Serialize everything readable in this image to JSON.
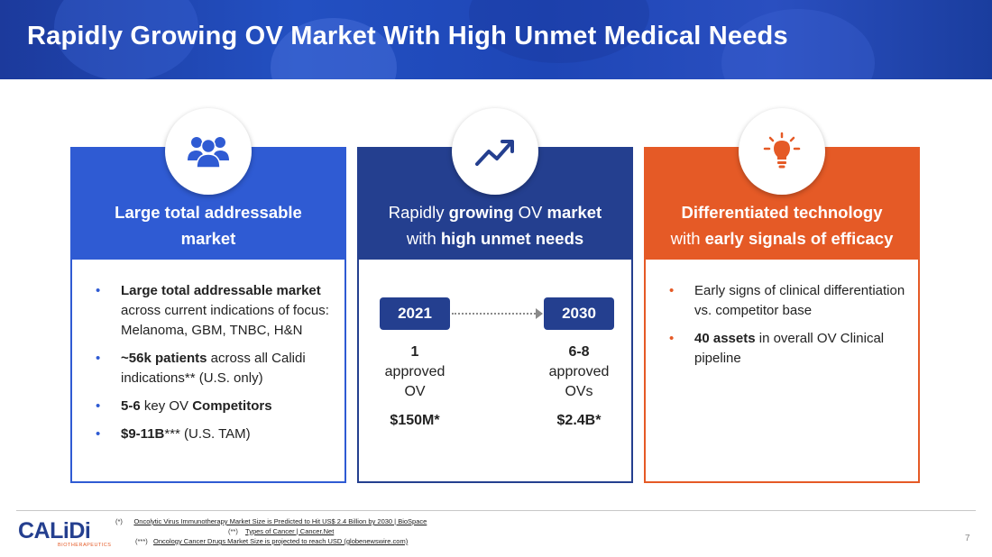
{
  "header": {
    "title": "Rapidly Growing OV Market With High Unmet Medical Needs"
  },
  "columns": [
    {
      "icon": "users-group-icon",
      "heading_line1": "Large total addressable",
      "heading_line2": "market",
      "bullets": [
        {
          "bold": "Large total addressable market",
          "text": " across current indications of focus: Melanoma, GBM, TNBC, H&N"
        },
        {
          "bold": "~56k patients",
          "text": " across all Calidi indications** (U.S. only)"
        },
        {
          "bold1": "5-6",
          "mid": " key OV ",
          "bold2": "Competitors"
        },
        {
          "bold": "$9-11B",
          "text": "*** (U.S. TAM)"
        }
      ]
    },
    {
      "icon": "trending-up-icon",
      "heading_l1_pre": "Rapidly ",
      "heading_l1_b1": "growing",
      "heading_l1_mid": " OV ",
      "heading_l1_b2": "market",
      "heading_l2_pre": "with ",
      "heading_l2_b": "high unmet needs",
      "timeline": [
        {
          "year": "2021",
          "count": "1",
          "label1": "approved",
          "label2": "OV",
          "size": "$150M*"
        },
        {
          "year": "2030",
          "count": "6-8",
          "label1": "approved",
          "label2": "OVs",
          "size": "$2.4B*"
        }
      ]
    },
    {
      "icon": "lightbulb-icon",
      "heading_line1": "Differentiated technology",
      "heading_l2_pre": "with ",
      "heading_l2_b": "early signals of efficacy",
      "bullets": [
        {
          "text": "Early signs of clinical differentiation vs. competitor base"
        },
        {
          "bold": "40 assets",
          "text": " in overall OV Clinical pipeline"
        }
      ]
    }
  ],
  "footer": {
    "logo_text": "CALiDi",
    "logo_sub": "BIOTHERAPEUTICS",
    "notes": [
      {
        "marker": "(*)",
        "link": "Oncolytic Virus Immunotherapy Market Size is Predicted to Hit US$ 2.4 Billion by 2030 | BioSpace"
      },
      {
        "marker": "(**)",
        "link": "Types of Cancer | Cancer.Net"
      },
      {
        "marker": "(***)",
        "link": "Oncology Cancer Drugs Market Size is projected to reach USD (globenewswire.com)"
      }
    ],
    "page_number": "7"
  },
  "colors": {
    "blue": "#2f5bd3",
    "navy": "#243f8f",
    "orange": "#e55a26"
  }
}
